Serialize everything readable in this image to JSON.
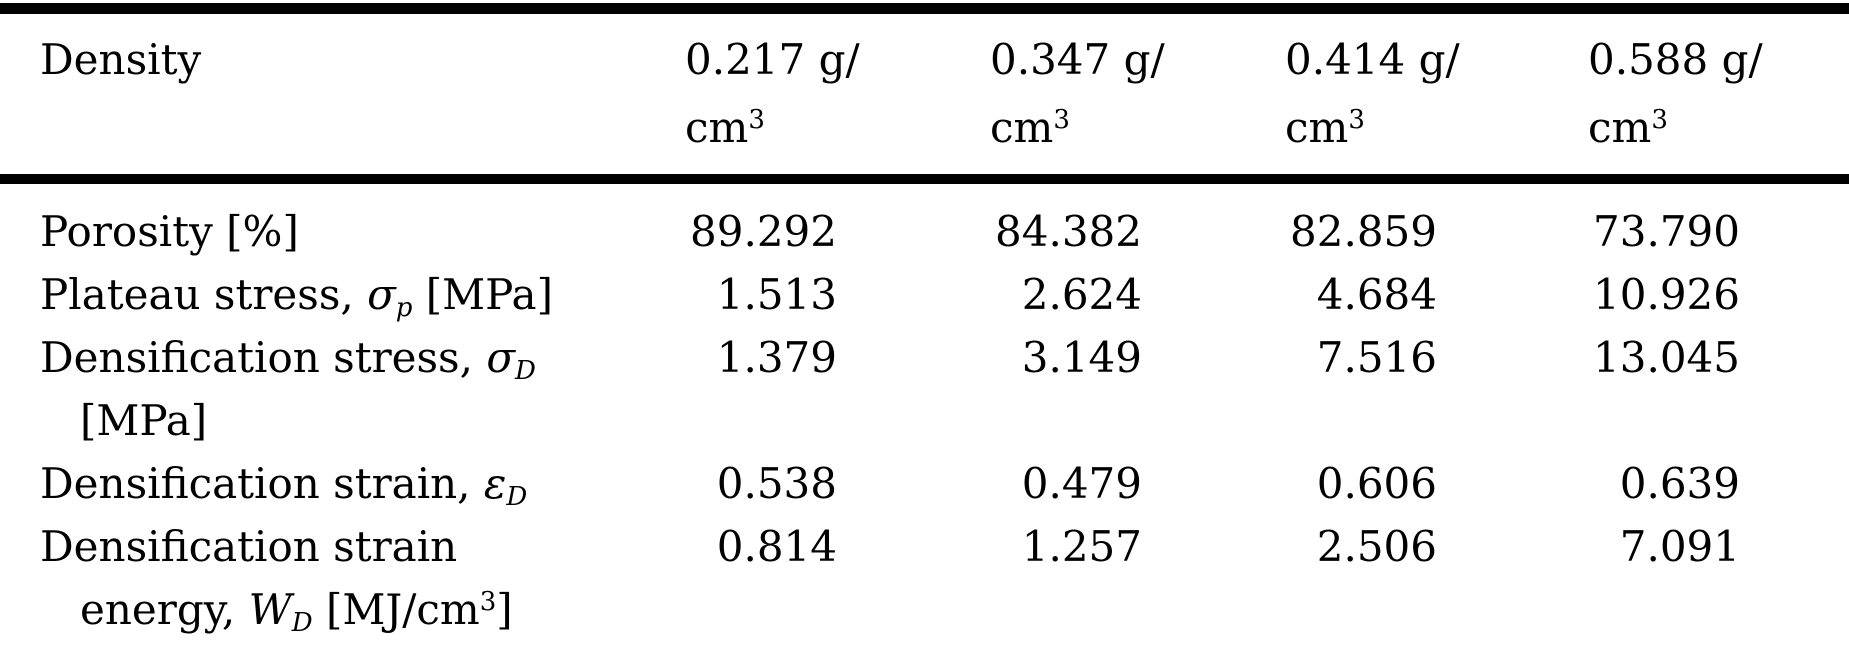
{
  "colors": {
    "background": "#ffffff",
    "text": "#000000",
    "rule": "#000000"
  },
  "table": {
    "header": {
      "label": "Density",
      "columns": [
        {
          "segments": [
            {
              "t": "n",
              "v": "0.217 g/"
            },
            {
              "t": "br"
            },
            {
              "t": "n",
              "v": "cm"
            },
            {
              "t": "sup",
              "v": "3"
            }
          ]
        },
        {
          "segments": [
            {
              "t": "n",
              "v": "0.347 g/"
            },
            {
              "t": "br"
            },
            {
              "t": "n",
              "v": "cm"
            },
            {
              "t": "sup",
              "v": "3"
            }
          ]
        },
        {
          "segments": [
            {
              "t": "n",
              "v": "0.414 g/"
            },
            {
              "t": "br"
            },
            {
              "t": "n",
              "v": "cm"
            },
            {
              "t": "sup",
              "v": "3"
            }
          ]
        },
        {
          "segments": [
            {
              "t": "n",
              "v": "0.588 g/"
            },
            {
              "t": "br"
            },
            {
              "t": "n",
              "v": "cm"
            },
            {
              "t": "sup",
              "v": "3"
            }
          ]
        }
      ]
    },
    "rows": [
      {
        "label_segments": [
          {
            "t": "n",
            "v": "Porosity [%]"
          }
        ],
        "values": [
          "89.292",
          "84.382",
          "82.859",
          "73.790"
        ]
      },
      {
        "label_segments": [
          {
            "t": "n",
            "v": "Plateau stress, "
          },
          {
            "t": "i",
            "v": "σ"
          },
          {
            "t": "isub",
            "v": "p"
          },
          {
            "t": "n",
            "v": " [MPa]"
          }
        ],
        "values": [
          "1.513",
          "2.624",
          "4.684",
          "10.926"
        ]
      },
      {
        "label_segments": [
          {
            "t": "n",
            "v": "Densification stress, "
          },
          {
            "t": "i",
            "v": "σ"
          },
          {
            "t": "isub",
            "v": "D"
          },
          {
            "t": "br"
          },
          {
            "t": "n",
            "v": "[MPa]"
          }
        ],
        "values": [
          "1.379",
          "3.149",
          "7.516",
          "13.045"
        ]
      },
      {
        "label_segments": [
          {
            "t": "n",
            "v": "Densification strain, "
          },
          {
            "t": "i",
            "v": "ε"
          },
          {
            "t": "isub",
            "v": "D"
          }
        ],
        "values": [
          "0.538",
          "0.479",
          "0.606",
          "0.639"
        ]
      },
      {
        "label_segments": [
          {
            "t": "n",
            "v": "Densification strain"
          },
          {
            "t": "br"
          },
          {
            "t": "n",
            "v": "energy, "
          },
          {
            "t": "i",
            "v": "W"
          },
          {
            "t": "isub",
            "v": "D"
          },
          {
            "t": "n",
            "v": " [MJ/cm"
          },
          {
            "t": "sup",
            "v": "3"
          },
          {
            "t": "n",
            "v": "]"
          }
        ],
        "values": [
          "0.814",
          "1.257",
          "2.506",
          "7.091"
        ]
      }
    ]
  },
  "chart_data": {
    "type": "table",
    "title": "",
    "columns": [
      "Density",
      "0.217 g/cm3",
      "0.347 g/cm3",
      "0.414 g/cm3",
      "0.588 g/cm3"
    ],
    "rows": [
      [
        "Porosity [%]",
        89.292,
        84.382,
        82.859,
        73.79
      ],
      [
        "Plateau stress, σp [MPa]",
        1.513,
        2.624,
        4.684,
        10.926
      ],
      [
        "Densification stress, σD [MPa]",
        1.379,
        3.149,
        7.516,
        13.045
      ],
      [
        "Densification strain, εD",
        0.538,
        0.479,
        0.606,
        0.639
      ],
      [
        "Densification strain energy, WD [MJ/cm3]",
        0.814,
        1.257,
        2.506,
        7.091
      ]
    ]
  }
}
